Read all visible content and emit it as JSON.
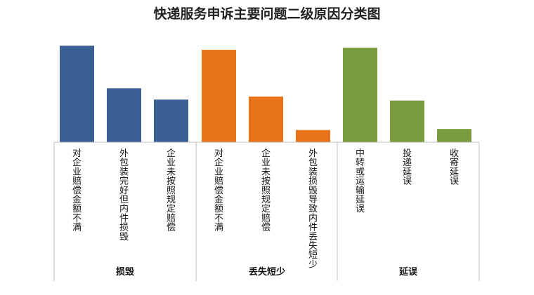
{
  "chart_data": {
    "type": "bar",
    "title": "快递服务申诉主要问题二级原因分类图",
    "xlabel": "",
    "ylabel": "",
    "ylim": [
      0,
      100
    ],
    "grid": false,
    "legend": "none",
    "groups": [
      {
        "name": "损毁",
        "color": "#3a5f93",
        "categories": [
          "对企业赔偿金额不满",
          "外包装完好但内件损毁",
          "企业未按照规定赔偿"
        ],
        "values": [
          95,
          53,
          42
        ]
      },
      {
        "name": "丢失短少",
        "color": "#e8731a",
        "categories": [
          "对企业赔偿金额不满",
          "企业未按照规定赔偿",
          "外包装损毁导致内件丢失短少"
        ],
        "values": [
          91,
          45,
          12
        ]
      },
      {
        "name": "延误",
        "color": "#7b9b3f",
        "categories": [
          "中转或运输延误",
          "投递延误",
          "收寄延误"
        ],
        "values": [
          93,
          41,
          13
        ]
      }
    ]
  }
}
